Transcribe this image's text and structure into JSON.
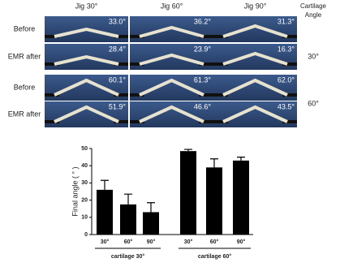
{
  "figure": {
    "columns": [
      "Jig 30°",
      "Jig 60°",
      "Jig 90°"
    ],
    "side_header": "Cartilage Angle",
    "groups": [
      {
        "label": "30°",
        "rows": [
          {
            "label": "Before",
            "angles": [
              "33.0°",
              "36.2°",
              "31.3°"
            ]
          },
          {
            "label": "EMR after",
            "angles": [
              "28.4°",
              "23.9°",
              "16.3°"
            ]
          }
        ]
      },
      {
        "label": "60°",
        "rows": [
          {
            "label": "Before",
            "angles": [
              "60.1°",
              "61.3°",
              "62.0°"
            ]
          },
          {
            "label": "EMR after",
            "angles": [
              "51.9°",
              "46.6°",
              "43.5°"
            ]
          }
        ]
      }
    ]
  },
  "chart_data": {
    "type": "bar",
    "y_label": "Final angle ( ° )",
    "categories": [
      "30°",
      "60°",
      "90°",
      "30°",
      "60°",
      "90°"
    ],
    "values": [
      26,
      17.5,
      13,
      48.5,
      39,
      43
    ],
    "errors": [
      5.5,
      6,
      5.5,
      1,
      5,
      2
    ],
    "groups": [
      "cartilage 30°",
      "cartilage 60°"
    ],
    "color": "#000000",
    "ylim": [
      0,
      50
    ],
    "yticks": [
      0,
      10,
      20,
      30,
      40,
      50
    ]
  }
}
